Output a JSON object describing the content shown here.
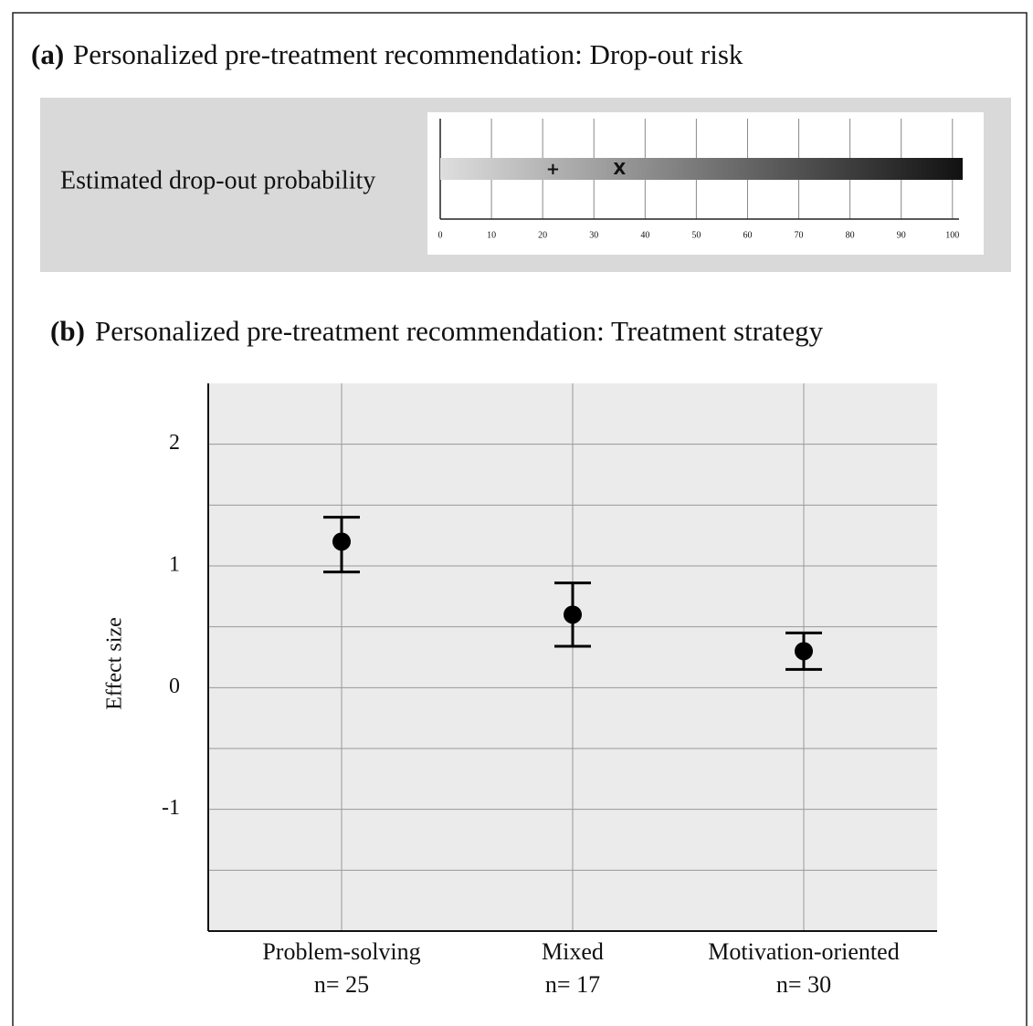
{
  "chart_data": [
    {
      "type": "scale",
      "panel": "(a)",
      "title": "Personalized pre-treatment recommendation: Drop-out risk",
      "label": "Estimated drop-out probability",
      "xlim": [
        0,
        102
      ],
      "xticks": [
        0,
        10,
        20,
        30,
        40,
        50,
        60,
        70,
        80,
        90,
        100
      ],
      "colors": [
        "#dedede",
        "#111111"
      ],
      "markers": [
        {
          "label": "+",
          "value": 22
        },
        {
          "label": "X",
          "value": 35
        }
      ]
    },
    {
      "type": "errorbar",
      "panel": "(b)",
      "title": "Personalized pre-treatment recommendation: Treatment strategy",
      "ylabel": "Effect size",
      "categories": [
        "Problem-solving",
        "Mixed",
        "Motivation-oriented"
      ],
      "sample_sizes": [
        "n= 25",
        "n= 17",
        "n= 30"
      ],
      "values": [
        1.2,
        0.6,
        0.3
      ],
      "lower": [
        0.95,
        0.34,
        0.15
      ],
      "upper": [
        1.4,
        0.86,
        0.45
      ],
      "ylim": [
        -2,
        2.5
      ],
      "yticks": [
        -1,
        0,
        1,
        2
      ],
      "yminor": [
        -1.5,
        -0.5,
        0.5,
        1.5
      ],
      "grid": true,
      "color": "#000000"
    }
  ]
}
